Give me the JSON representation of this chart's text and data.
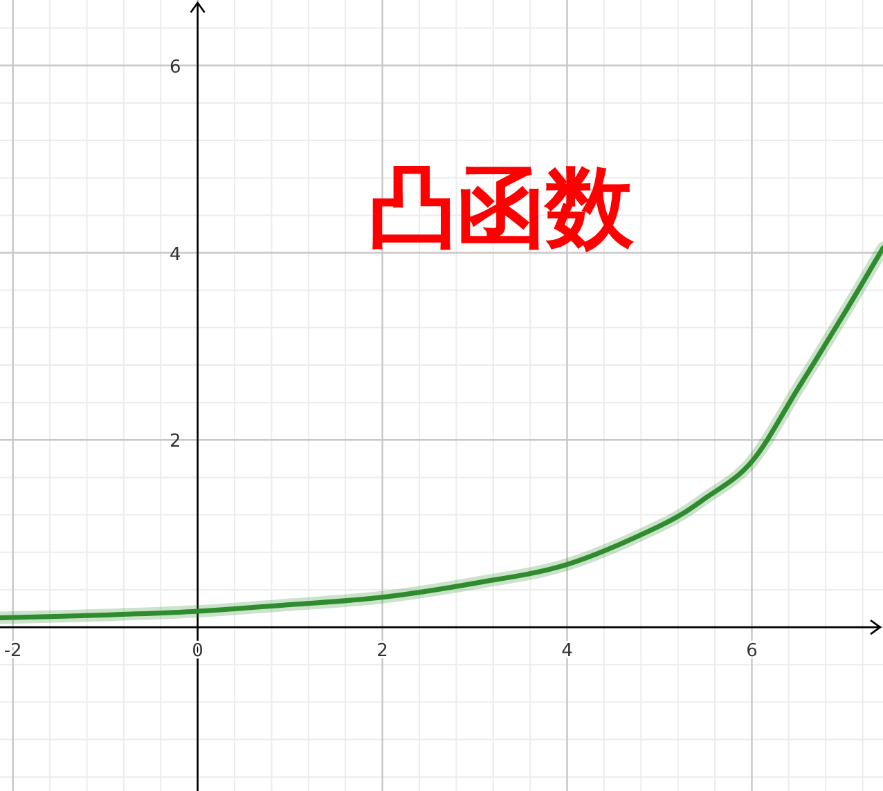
{
  "chart_data": {
    "type": "line",
    "title": "凸函数",
    "color": "#2e8b2e",
    "x": [
      -2.14,
      -1,
      0,
      1,
      2,
      3,
      4,
      5,
      5.5,
      6,
      6.5,
      7,
      7.42
    ],
    "values": [
      0.1,
      0.13,
      0.17,
      0.24,
      0.32,
      0.47,
      0.67,
      1.08,
      1.38,
      1.77,
      2.55,
      3.35,
      4.05
    ],
    "xlim": [
      -2.14,
      7.42
    ],
    "ylim": [
      -1.75,
      6.7
    ],
    "xticks": [
      -2,
      0,
      2,
      4,
      6
    ],
    "yticks": [
      2,
      4,
      6
    ],
    "grid": true
  }
}
